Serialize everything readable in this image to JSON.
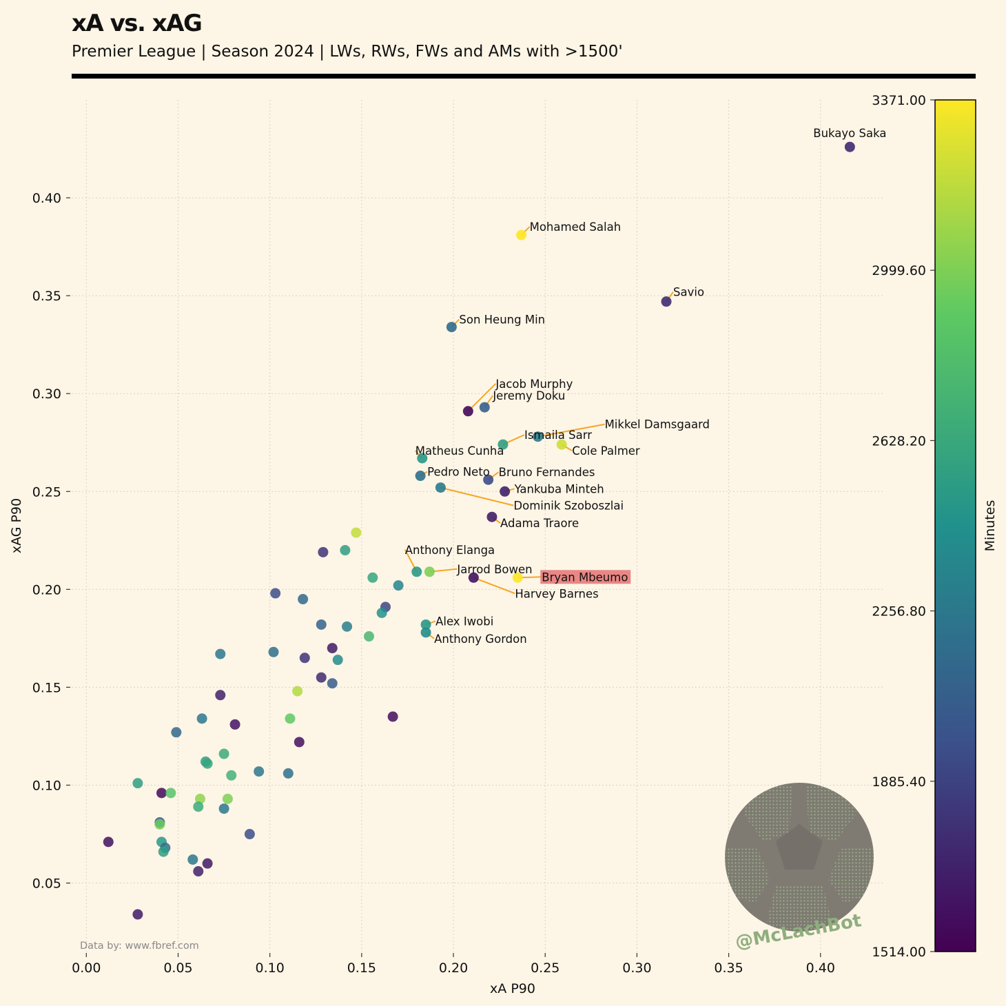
{
  "header": {
    "title": "xA vs. xAG",
    "subtitle": "Premier League | Season 2024 | LWs, RWs, FWs and AMs with >1500'"
  },
  "credit": "Data by: www.fbref.com",
  "watermark": {
    "handle": "@McLachBot"
  },
  "colors": {
    "background": "#fdf5e6",
    "annotation_line": "#f5a623",
    "highlight": "#e57373",
    "grid": "#d9d2c3"
  },
  "chart_data": {
    "type": "scatter",
    "xlabel": "xA P90",
    "ylabel": "xAG P90",
    "xlim": [
      -0.008,
      0.435
    ],
    "ylim": [
      0.015,
      0.45
    ],
    "xticks": [
      0.0,
      0.05,
      0.1,
      0.15,
      0.2,
      0.25,
      0.3,
      0.35,
      0.4
    ],
    "xtick_labels": [
      "0.00",
      "0.05",
      "0.10",
      "0.15",
      "0.20",
      "0.25",
      "0.30",
      "0.35",
      "0.40"
    ],
    "yticks": [
      0.05,
      0.1,
      0.15,
      0.2,
      0.25,
      0.3,
      0.35,
      0.4
    ],
    "ytick_labels": [
      "0.05",
      "0.10",
      "0.15",
      "0.20",
      "0.25",
      "0.30",
      "0.35",
      "0.40"
    ],
    "grid": true,
    "colorbar": {
      "label": "Minutes",
      "min": 1514,
      "max": 3371,
      "colormap": "viridis",
      "ticks": [
        1514,
        1885.4,
        2256.8,
        2628.2,
        2999.6,
        3371
      ],
      "tick_labels": [
        "1514.00",
        "1885.40",
        "2256.80",
        "2628.20",
        "2999.60",
        "3371.00"
      ]
    },
    "highlight": "Bryan Mbeumo",
    "labeled_points": [
      {
        "name": "Bukayo Saka",
        "x": 0.416,
        "y": 0.426,
        "minutes": 1750
      },
      {
        "name": "Mohamed Salah",
        "x": 0.237,
        "y": 0.381,
        "minutes": 3371
      },
      {
        "name": "Savio",
        "x": 0.316,
        "y": 0.347,
        "minutes": 1760
      },
      {
        "name": "Son Heung Min",
        "x": 0.199,
        "y": 0.334,
        "minutes": 2170
      },
      {
        "name": "Jacob Murphy",
        "x": 0.208,
        "y": 0.291,
        "minutes": 1560
      },
      {
        "name": "Jeremy Doku",
        "x": 0.217,
        "y": 0.293,
        "minutes": 2080
      },
      {
        "name": "Ismaila Sarr",
        "x": 0.227,
        "y": 0.274,
        "minutes": 2560
      },
      {
        "name": "Mikkel Damsgaard",
        "x": 0.246,
        "y": 0.278,
        "minutes": 2290
      },
      {
        "name": "Cole Palmer",
        "x": 0.259,
        "y": 0.274,
        "minutes": 3230
      },
      {
        "name": "Matheus Cunha",
        "x": 0.183,
        "y": 0.267,
        "minutes": 2500
      },
      {
        "name": "Pedro Neto",
        "x": 0.182,
        "y": 0.258,
        "minutes": 2200
      },
      {
        "name": "Bruno Fernandes",
        "x": 0.219,
        "y": 0.256,
        "minutes": 1950
      },
      {
        "name": "Yankuba Minteh",
        "x": 0.228,
        "y": 0.25,
        "minutes": 1700
      },
      {
        "name": "Dominik Szoboszlai",
        "x": 0.193,
        "y": 0.252,
        "minutes": 2280
      },
      {
        "name": "Adama Traore",
        "x": 0.221,
        "y": 0.237,
        "minutes": 1680
      },
      {
        "name": "Anthony Elanga",
        "x": 0.18,
        "y": 0.209,
        "minutes": 2520
      },
      {
        "name": "Jarrod Bowen",
        "x": 0.187,
        "y": 0.209,
        "minutes": 3000
      },
      {
        "name": "Bryan Mbeumo",
        "x": 0.235,
        "y": 0.206,
        "minutes": 3371
      },
      {
        "name": "Harvey Barnes",
        "x": 0.211,
        "y": 0.206,
        "minutes": 1620
      },
      {
        "name": "Alex Iwobi",
        "x": 0.185,
        "y": 0.182,
        "minutes": 2500
      },
      {
        "name": "Anthony Gordon",
        "x": 0.185,
        "y": 0.178,
        "minutes": 2420
      }
    ],
    "other_points": [
      {
        "x": 0.147,
        "y": 0.229,
        "minutes": 3200
      },
      {
        "x": 0.129,
        "y": 0.219,
        "minutes": 1800
      },
      {
        "x": 0.141,
        "y": 0.22,
        "minutes": 2550
      },
      {
        "x": 0.156,
        "y": 0.206,
        "minutes": 2600
      },
      {
        "x": 0.17,
        "y": 0.202,
        "minutes": 2350
      },
      {
        "x": 0.103,
        "y": 0.198,
        "minutes": 1950
      },
      {
        "x": 0.118,
        "y": 0.195,
        "minutes": 2150
      },
      {
        "x": 0.163,
        "y": 0.191,
        "minutes": 1900
      },
      {
        "x": 0.161,
        "y": 0.188,
        "minutes": 2450
      },
      {
        "x": 0.128,
        "y": 0.182,
        "minutes": 2100
      },
      {
        "x": 0.142,
        "y": 0.181,
        "minutes": 2300
      },
      {
        "x": 0.154,
        "y": 0.176,
        "minutes": 2750
      },
      {
        "x": 0.134,
        "y": 0.17,
        "minutes": 1650
      },
      {
        "x": 0.102,
        "y": 0.168,
        "minutes": 2200
      },
      {
        "x": 0.073,
        "y": 0.167,
        "minutes": 2250
      },
      {
        "x": 0.119,
        "y": 0.165,
        "minutes": 1800
      },
      {
        "x": 0.137,
        "y": 0.164,
        "minutes": 2400
      },
      {
        "x": 0.128,
        "y": 0.155,
        "minutes": 1750
      },
      {
        "x": 0.134,
        "y": 0.152,
        "minutes": 2050
      },
      {
        "x": 0.115,
        "y": 0.148,
        "minutes": 3150
      },
      {
        "x": 0.073,
        "y": 0.146,
        "minutes": 1700
      },
      {
        "x": 0.167,
        "y": 0.135,
        "minutes": 1580
      },
      {
        "x": 0.111,
        "y": 0.134,
        "minutes": 2900
      },
      {
        "x": 0.063,
        "y": 0.134,
        "minutes": 2250
      },
      {
        "x": 0.081,
        "y": 0.131,
        "minutes": 1620
      },
      {
        "x": 0.049,
        "y": 0.127,
        "minutes": 2150
      },
      {
        "x": 0.116,
        "y": 0.122,
        "minutes": 1600
      },
      {
        "x": 0.075,
        "y": 0.116,
        "minutes": 2650
      },
      {
        "x": 0.065,
        "y": 0.112,
        "minutes": 2550
      },
      {
        "x": 0.066,
        "y": 0.111,
        "minutes": 2600
      },
      {
        "x": 0.094,
        "y": 0.107,
        "minutes": 2250
      },
      {
        "x": 0.11,
        "y": 0.106,
        "minutes": 2200
      },
      {
        "x": 0.079,
        "y": 0.105,
        "minutes": 2700
      },
      {
        "x": 0.028,
        "y": 0.101,
        "minutes": 2550
      },
      {
        "x": 0.041,
        "y": 0.096,
        "minutes": 1560
      },
      {
        "x": 0.046,
        "y": 0.096,
        "minutes": 2850
      },
      {
        "x": 0.062,
        "y": 0.093,
        "minutes": 3050
      },
      {
        "x": 0.077,
        "y": 0.093,
        "minutes": 3000
      },
      {
        "x": 0.061,
        "y": 0.089,
        "minutes": 2650
      },
      {
        "x": 0.075,
        "y": 0.088,
        "minutes": 2250
      },
      {
        "x": 0.04,
        "y": 0.081,
        "minutes": 2050
      },
      {
        "x": 0.04,
        "y": 0.08,
        "minutes": 2950
      },
      {
        "x": 0.089,
        "y": 0.075,
        "minutes": 1950
      },
      {
        "x": 0.012,
        "y": 0.071,
        "minutes": 1600
      },
      {
        "x": 0.041,
        "y": 0.071,
        "minutes": 2500
      },
      {
        "x": 0.043,
        "y": 0.068,
        "minutes": 2200
      },
      {
        "x": 0.042,
        "y": 0.066,
        "minutes": 2550
      },
      {
        "x": 0.058,
        "y": 0.062,
        "minutes": 2250
      },
      {
        "x": 0.066,
        "y": 0.06,
        "minutes": 1650
      },
      {
        "x": 0.061,
        "y": 0.056,
        "minutes": 1700
      },
      {
        "x": 0.028,
        "y": 0.034,
        "minutes": 1650
      }
    ]
  }
}
